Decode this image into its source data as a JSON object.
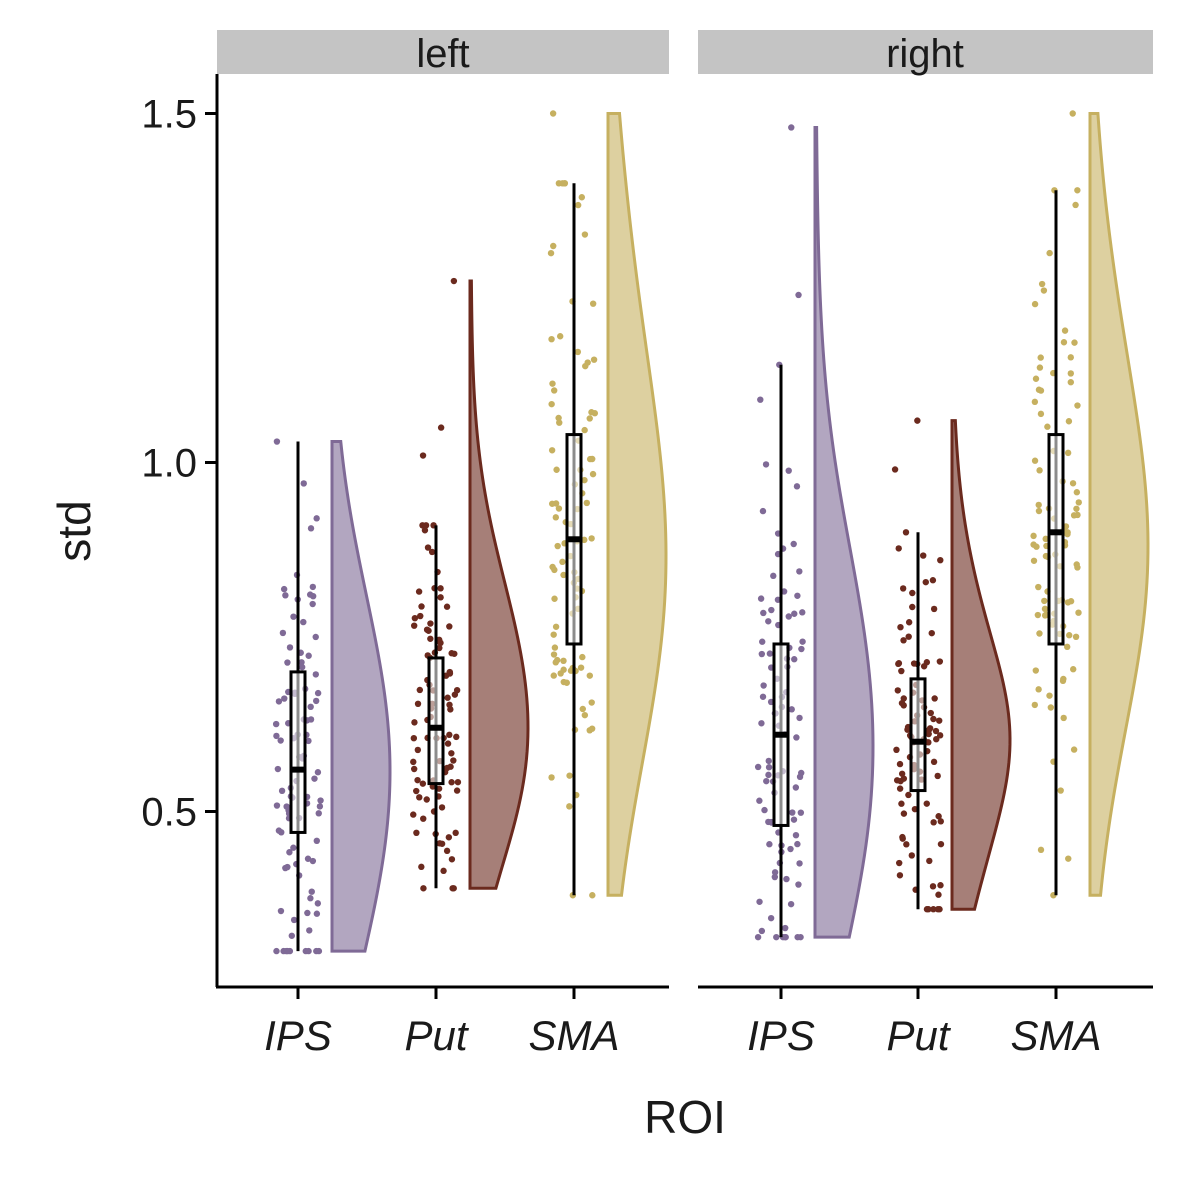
{
  "chart_data": {
    "type": "raincloud",
    "xlabel": "ROI",
    "ylabel": "std",
    "ylim": [
      0.25,
      1.56
    ],
    "yticks": [
      0.5,
      1.0,
      1.5
    ],
    "ytick_labels": [
      "0.5",
      "1.0",
      "1.5"
    ],
    "categories": [
      "IPS",
      "Put",
      "SMA"
    ],
    "colors": {
      "IPS": "#7f6a96",
      "Put": "#6b2a1e",
      "SMA": "#c6b060"
    },
    "panels": [
      {
        "name": "left",
        "groups": [
          {
            "category": "IPS",
            "min": 0.3,
            "q1": 0.47,
            "median": 0.56,
            "q3": 0.7,
            "max": 1.03,
            "n": 90,
            "outliers": [
              0.97,
              0.92
            ]
          },
          {
            "category": "Put",
            "min": 0.39,
            "q1": 0.54,
            "median": 0.62,
            "q3": 0.72,
            "max": 0.91,
            "n": 90,
            "outliers": [
              1.26,
              1.05,
              1.01
            ]
          },
          {
            "category": "SMA",
            "min": 0.38,
            "q1": 0.74,
            "median": 0.89,
            "q3": 1.04,
            "max": 1.4,
            "n": 90,
            "outliers": [
              1.5,
              1.38
            ]
          }
        ]
      },
      {
        "name": "right",
        "groups": [
          {
            "category": "IPS",
            "min": 0.32,
            "q1": 0.48,
            "median": 0.61,
            "q3": 0.74,
            "max": 1.14,
            "n": 90,
            "outliers": [
              1.48,
              1.24,
              1.09
            ]
          },
          {
            "category": "Put",
            "min": 0.36,
            "q1": 0.53,
            "median": 0.6,
            "q3": 0.69,
            "max": 0.9,
            "n": 90,
            "outliers": [
              1.06,
              0.99
            ]
          },
          {
            "category": "SMA",
            "min": 0.38,
            "q1": 0.74,
            "median": 0.9,
            "q3": 1.04,
            "max": 1.39,
            "n": 90,
            "outliers": [
              1.5,
              1.3
            ]
          }
        ]
      }
    ]
  }
}
